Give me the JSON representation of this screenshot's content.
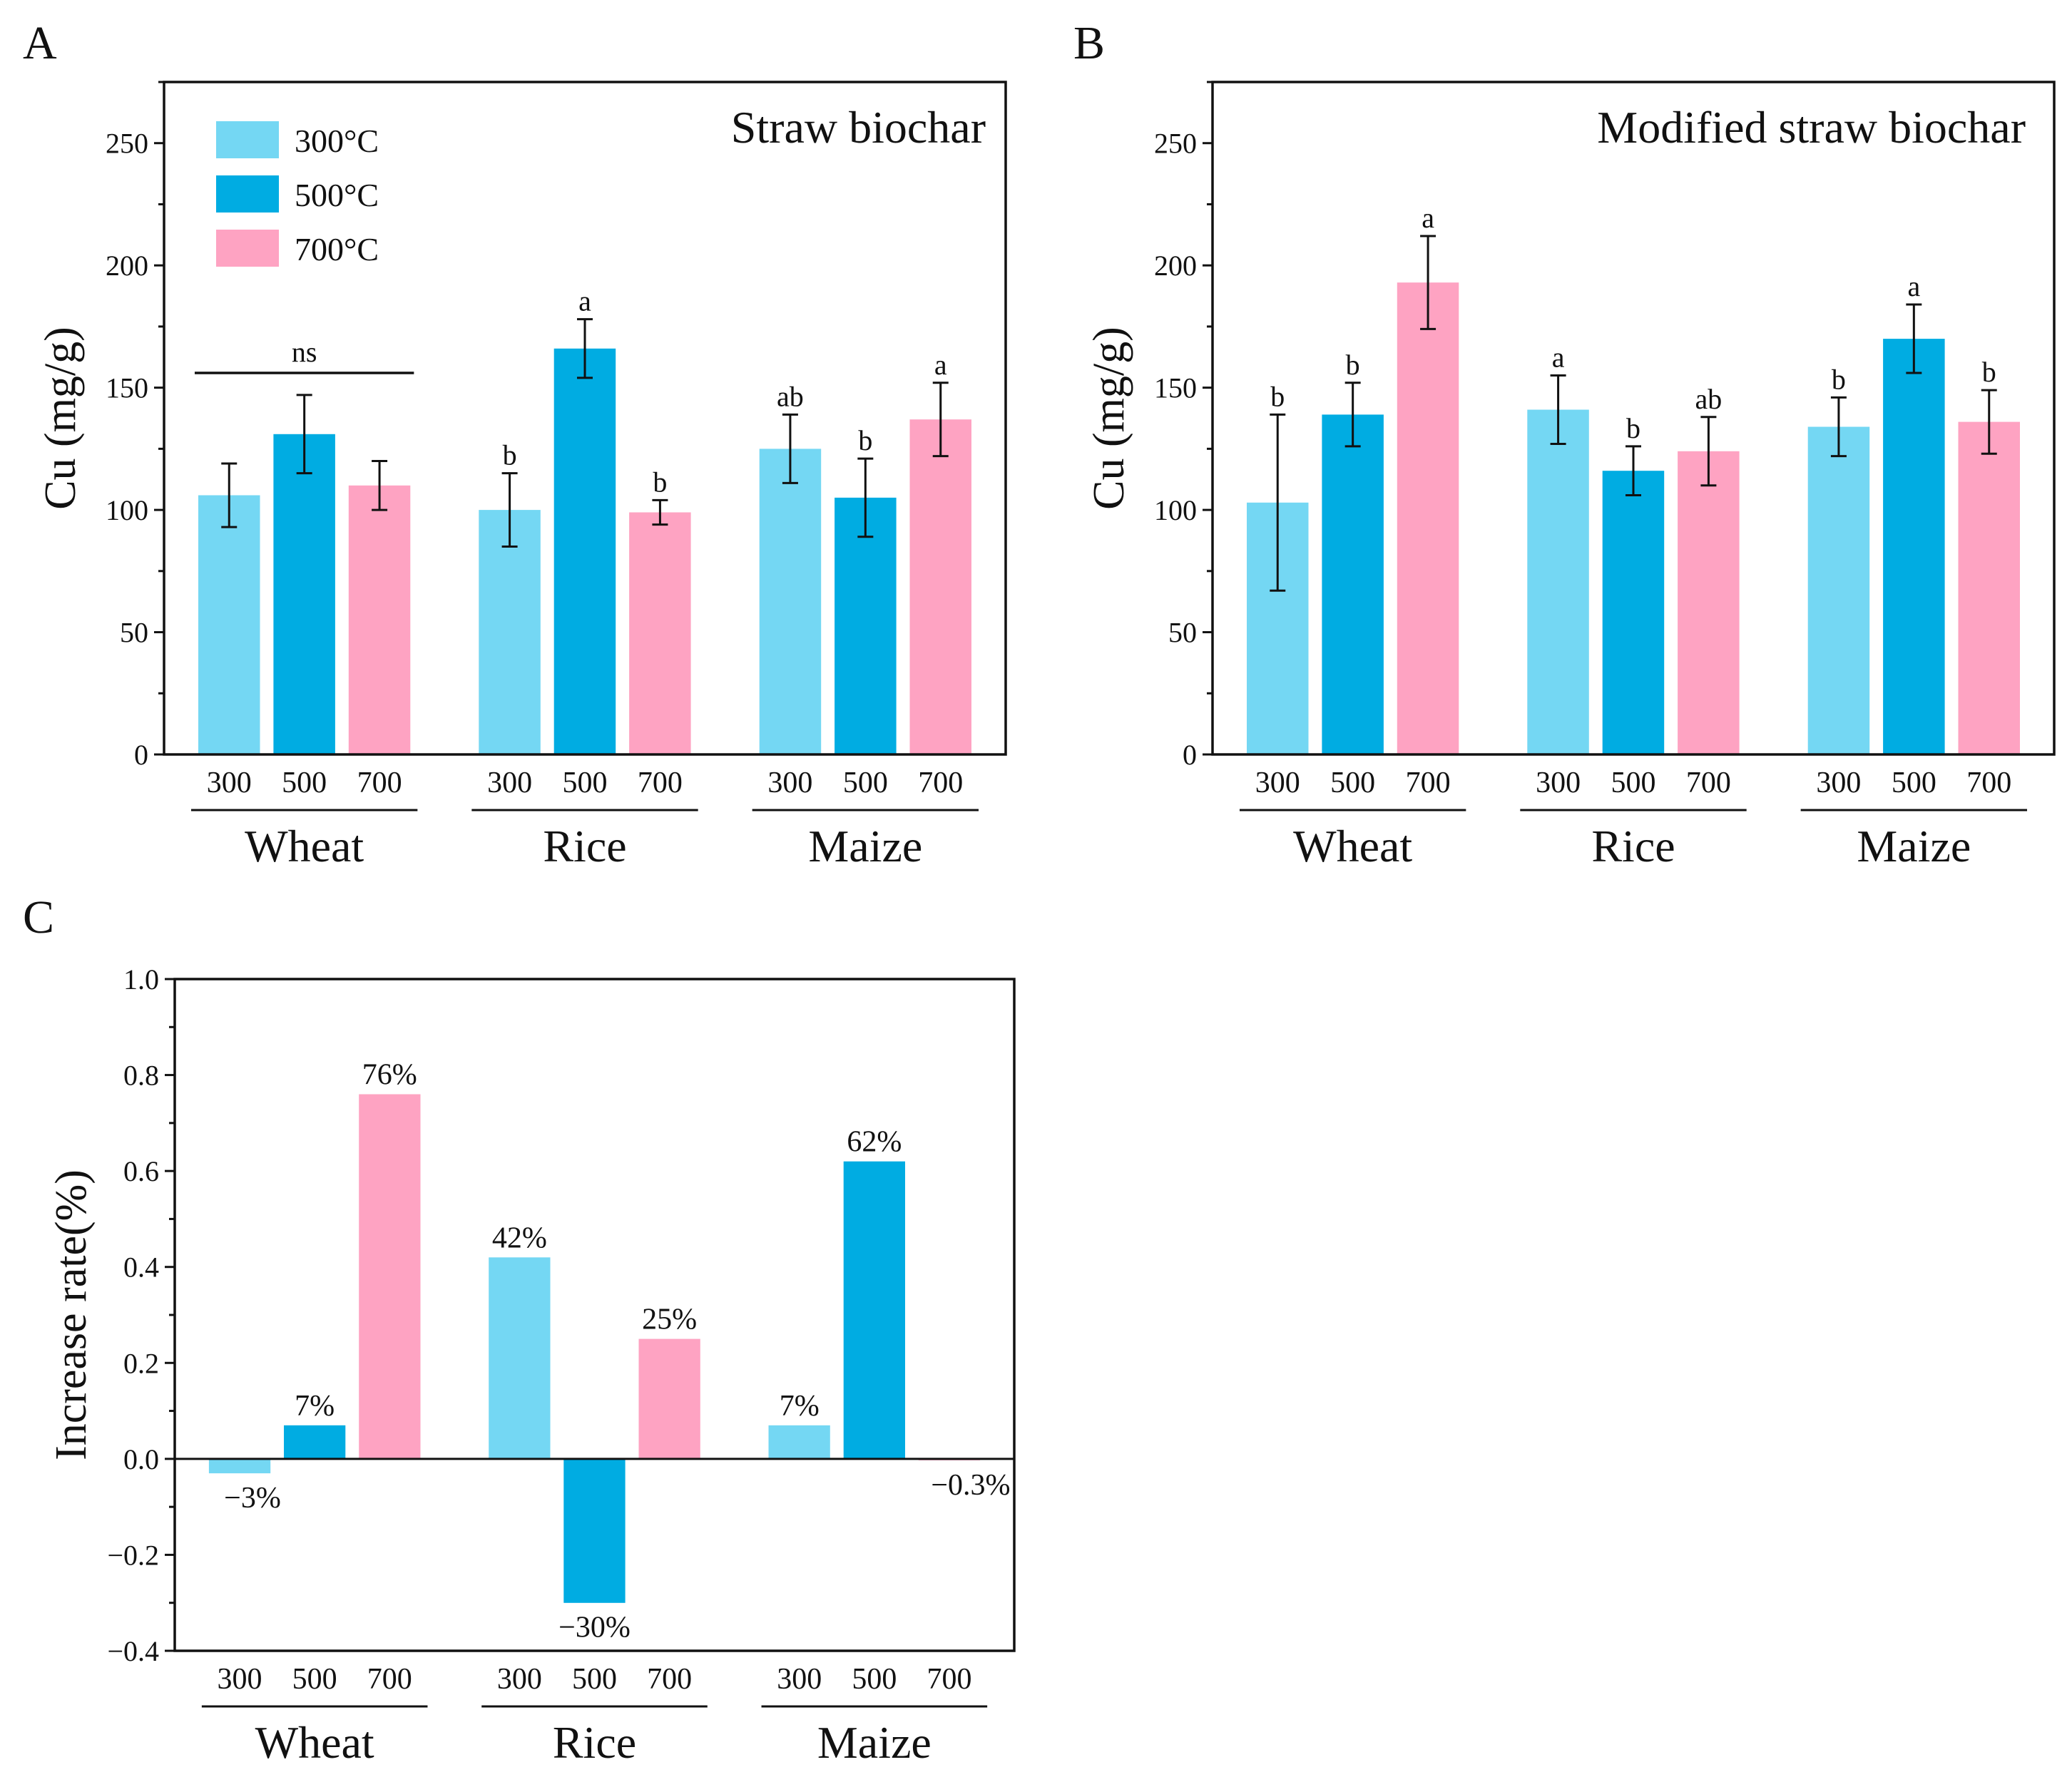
{
  "colors": {
    "t300": "#74D7F3",
    "t500": "#00ACE2",
    "t700": "#FEA3C2",
    "axis": "#111111"
  },
  "legend": [
    {
      "label": "300°C",
      "color_key": "t300"
    },
    {
      "label": "500°C",
      "color_key": "t500"
    },
    {
      "label": "700°C",
      "color_key": "t700"
    }
  ],
  "chart_data": [
    {
      "panel": "A",
      "type": "bar",
      "title": "Straw biochar",
      "ylabel": "Cu (mg/g)",
      "ylim": [
        0,
        275
      ],
      "yticks": [
        0,
        50,
        100,
        150,
        200,
        250
      ],
      "ytick_labels": [
        "0",
        "50",
        "100",
        "150",
        "200",
        "250"
      ],
      "categories": [
        "Wheat",
        "Rice",
        "Maize"
      ],
      "subcategories": [
        "300",
        "500",
        "700"
      ],
      "series": [
        {
          "name": "300°C",
          "values": [
            106,
            100,
            125
          ],
          "errors": [
            13,
            15,
            14
          ],
          "significance": [
            "",
            "b",
            "ab"
          ]
        },
        {
          "name": "500°C",
          "values": [
            131,
            166,
            105
          ],
          "errors": [
            16,
            12,
            16
          ],
          "significance": [
            "",
            "a",
            "b"
          ]
        },
        {
          "name": "700°C",
          "values": [
            110,
            99,
            137
          ],
          "errors": [
            10,
            5,
            15
          ],
          "significance": [
            "",
            "b",
            "a"
          ]
        }
      ],
      "group_annotation": {
        "group": "Wheat",
        "text": "ns",
        "y": 156
      }
    },
    {
      "panel": "B",
      "type": "bar",
      "title": "Modified straw biochar",
      "ylabel": "Cu (mg/g)",
      "ylim": [
        0,
        275
      ],
      "yticks": [
        0,
        50,
        100,
        150,
        200,
        250
      ],
      "ytick_labels": [
        "0",
        "50",
        "100",
        "150",
        "200",
        "250"
      ],
      "categories": [
        "Wheat",
        "Rice",
        "Maize"
      ],
      "subcategories": [
        "300",
        "500",
        "700"
      ],
      "series": [
        {
          "name": "300°C",
          "values": [
            103,
            141,
            134
          ],
          "errors": [
            36,
            14,
            12
          ],
          "significance": [
            "b",
            "a",
            "b"
          ]
        },
        {
          "name": "500°C",
          "values": [
            139,
            116,
            170
          ],
          "errors": [
            13,
            10,
            14
          ],
          "significance": [
            "b",
            "b",
            "a"
          ]
        },
        {
          "name": "700°C",
          "values": [
            193,
            124,
            136
          ],
          "errors": [
            19,
            14,
            13
          ],
          "significance": [
            "a",
            "ab",
            "b"
          ]
        }
      ]
    },
    {
      "panel": "C",
      "type": "bar",
      "ylabel": "Increase rate(%)",
      "ylim": [
        -0.4,
        1.0
      ],
      "yticks": [
        -0.4,
        -0.2,
        0.0,
        0.2,
        0.4,
        0.6,
        0.8,
        1.0
      ],
      "ytick_labels": [
        "−0.4",
        "−0.2",
        "0.0",
        "0.2",
        "0.4",
        "0.6",
        "0.8",
        "1.0"
      ],
      "categories": [
        "Wheat",
        "Rice",
        "Maize"
      ],
      "subcategories": [
        "300",
        "500",
        "700"
      ],
      "series": [
        {
          "name": "300°C",
          "values": [
            -0.03,
            0.42,
            0.07
          ],
          "data_labels": [
            "−3%",
            "42%",
            "7%"
          ]
        },
        {
          "name": "500°C",
          "values": [
            0.07,
            -0.3,
            0.62
          ],
          "data_labels": [
            "7%",
            "−30%",
            "62%"
          ]
        },
        {
          "name": "700°C",
          "values": [
            0.76,
            0.25,
            -0.003
          ],
          "data_labels": [
            "76%",
            "25%",
            "−0.3%"
          ]
        }
      ]
    }
  ]
}
